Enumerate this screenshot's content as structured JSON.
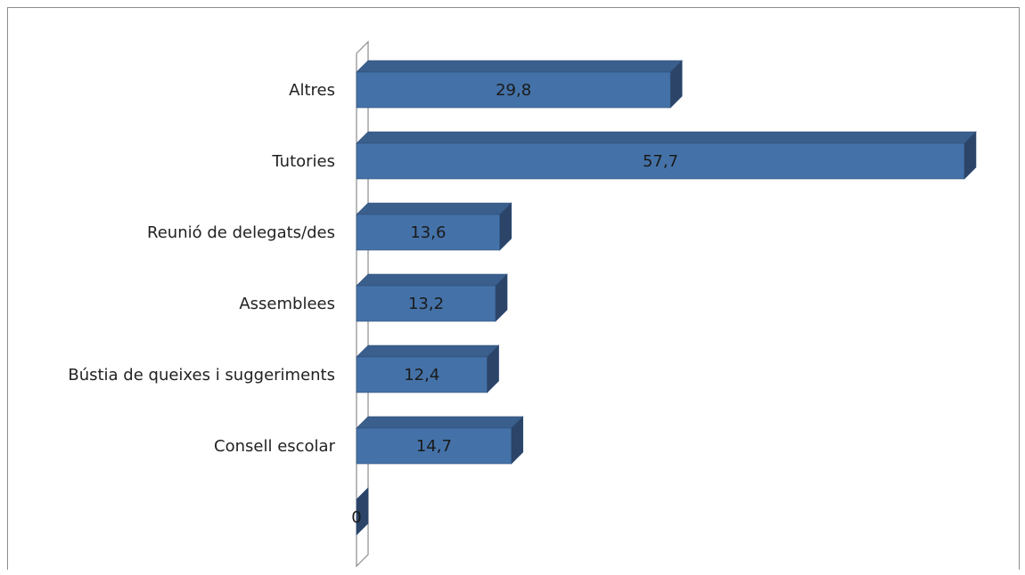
{
  "chart_data": {
    "type": "bar",
    "orientation": "horizontal",
    "three_d": true,
    "categories": [
      "Altres",
      "Tutories",
      "Reunió de delegats/des",
      "Assemblees",
      "Bústia de queixes i suggeriments",
      "Consell escolar",
      ""
    ],
    "values": [
      29.8,
      57.7,
      13.6,
      13.2,
      12.4,
      14.7,
      0
    ],
    "value_labels": [
      "29,8",
      "57,7",
      "13,6",
      "13,2",
      "12,4",
      "14,7",
      "0"
    ],
    "xlim": [
      0,
      57.7
    ],
    "grid": false,
    "legend": "none",
    "colors": {
      "bar_front": "#4472a8",
      "bar_top": "#3b5f8d",
      "bar_side": "#2b4468",
      "bar_stroke": "#2f4f78",
      "wall_stroke": "#8c8c8c"
    }
  }
}
